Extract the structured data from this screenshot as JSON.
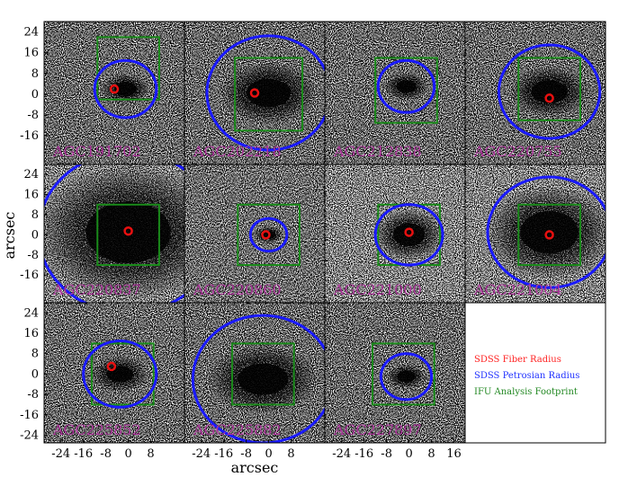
{
  "chart_data": {
    "type": "image-grid",
    "xlabel": "arcsec",
    "ylabel": "arcsec",
    "x_ticks": [
      "-24",
      "-16",
      "-8",
      "0",
      "8",
      "16"
    ],
    "y_ticks": [
      "24",
      "16",
      "8",
      "0",
      "-8",
      "-16",
      "-24"
    ],
    "x_range": [
      -30,
      20
    ],
    "y_range": [
      -27,
      28
    ],
    "panels": [
      {
        "name": "AGC191702",
        "background": "sparse",
        "fiber": {
          "x": -5,
          "y": 2
        },
        "petrosian": {
          "x": -1,
          "y": 2,
          "r": 11
        },
        "ifu": {
          "x": 0,
          "y": 10,
          "half_width": 11,
          "half_height": 12
        }
      },
      {
        "name": "AGC202218",
        "background": "sparse",
        "fiber": {
          "x": -5,
          "y": 0.5
        },
        "petrosian": {
          "x": 0,
          "y": 0.5,
          "r": 22
        },
        "ifu": {
          "x": 0,
          "y": 0,
          "half_width": 12,
          "half_height": 14
        }
      },
      {
        "name": "AGC212838",
        "background": "sparse",
        "fiber": null,
        "petrosian": {
          "x": -1,
          "y": 3,
          "r": 10
        },
        "ifu": {
          "x": -1,
          "y": 1.5,
          "half_width": 11,
          "half_height": 12.5
        }
      },
      {
        "name": "AGC220755",
        "background": "sparse",
        "fiber": {
          "x": 0,
          "y": -1.5
        },
        "petrosian": {
          "x": 0,
          "y": 1,
          "r": 18
        },
        "ifu": {
          "x": 0,
          "y": 2,
          "half_width": 11,
          "half_height": 12
        }
      },
      {
        "name": "AGC220837",
        "background": "dense",
        "fiber": {
          "x": 0,
          "y": 1.5
        },
        "petrosian": {
          "x": 0,
          "y": 1,
          "r": 32
        },
        "ifu": {
          "x": 0,
          "y": 0,
          "half_width": 11,
          "half_height": 12
        }
      },
      {
        "name": "AGC220860",
        "background": "noisy",
        "fiber": {
          "x": -1,
          "y": 0
        },
        "petrosian": {
          "x": 0,
          "y": 0,
          "r": 6.5
        },
        "ifu": {
          "x": 0,
          "y": 0,
          "half_width": 11,
          "half_height": 12
        }
      },
      {
        "name": "AGC221000",
        "background": "dense",
        "fiber": {
          "x": 0,
          "y": 1
        },
        "petrosian": {
          "x": 0,
          "y": 0,
          "r": 12
        },
        "ifu": {
          "x": 0,
          "y": 0,
          "half_width": 11,
          "half_height": 12
        }
      },
      {
        "name": "AGC221004",
        "background": "dense",
        "fiber": {
          "x": 0,
          "y": 0
        },
        "petrosian": {
          "x": 0,
          "y": 1,
          "r": 22
        },
        "ifu": {
          "x": 0,
          "y": 0,
          "half_width": 11,
          "half_height": 12
        }
      },
      {
        "name": "AGC225852",
        "background": "sparse",
        "fiber": {
          "x": -6,
          "y": 3
        },
        "petrosian": {
          "x": -3,
          "y": 0,
          "r": 13
        },
        "ifu": {
          "x": -2,
          "y": 0,
          "half_width": 11,
          "half_height": 12
        }
      },
      {
        "name": "AGC225882",
        "background": "sparse",
        "fiber": null,
        "petrosian": {
          "x": -2,
          "y": -2,
          "r": 25
        },
        "ifu": {
          "x": -2,
          "y": 0,
          "half_width": 11,
          "half_height": 12
        }
      },
      {
        "name": "AGC227897",
        "background": "sparse",
        "fiber": null,
        "petrosian": {
          "x": -1,
          "y": -1,
          "r": 9
        },
        "ifu": {
          "x": -2,
          "y": 0,
          "half_width": 11,
          "half_height": 12
        }
      },
      {
        "name": "",
        "background": "empty",
        "fiber": null,
        "petrosian": null,
        "ifu": null
      }
    ],
    "legend": [
      {
        "label": "SDSS Fiber Radius",
        "color": "#ff2222"
      },
      {
        "label": "SDSS Petrosian Radius",
        "color": "#2233ff"
      },
      {
        "label": "IFU Analysis Footprint",
        "color": "#228822"
      }
    ],
    "colors": {
      "fiber": "#e81010",
      "petrosian": "#1a1aff",
      "ifu": "#1a8a1a",
      "name": "#aa3399"
    }
  }
}
